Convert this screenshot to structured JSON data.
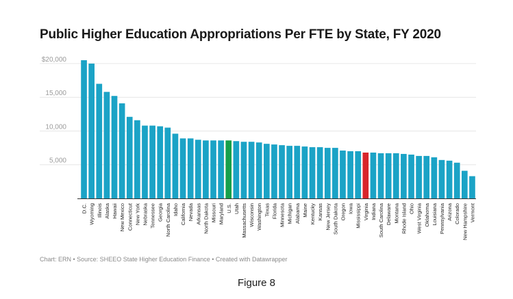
{
  "title": "Public Higher Education Appropriations Per FTE by State, FY 2020",
  "footer": "Chart: ERN • Source: SHEEO State Higher Education Finance • Created with Datawrapper",
  "caption": "Figure 8",
  "colors": {
    "default": "#1ba3c6",
    "us": "#16a04a",
    "highlight": "#d8262b",
    "grid": "#e6e6e6",
    "axis": "#333333",
    "tick_text": "#9a9a9a"
  },
  "chart_data": {
    "type": "bar",
    "title": "Public Higher Education Appropriations Per FTE by State, FY 2020",
    "xlabel": "",
    "ylabel": "",
    "ylim": [
      0,
      20500
    ],
    "y_ticks": [
      5000,
      10000,
      15000,
      20000
    ],
    "y_tick_labels": [
      "5,000",
      "10,000",
      "15,000",
      "$20,000"
    ],
    "grid": true,
    "categories": [
      "D.C.",
      "Wyoming",
      "Illinois",
      "Alaska",
      "Hawaii",
      "New Mexico",
      "Connecticut",
      "New York",
      "Nebraska",
      "Tennessee",
      "Georgia",
      "North Carolina",
      "Idaho",
      "California",
      "Nevada",
      "Arkansas",
      "North Dakota",
      "Missouri",
      "Maryland",
      "U.S.",
      "Utah",
      "Massachusetts",
      "Wisconsin",
      "Washington",
      "Texas",
      "Florida",
      "Minnesota",
      "Michigan",
      "Alabama",
      "Maine",
      "Kentucky",
      "Kansas",
      "New Jersey",
      "South Dakota",
      "Oregon",
      "Iowa",
      "Mississippi",
      "Virginia",
      "Indiana",
      "South Carolina",
      "Delaware",
      "Montana",
      "Rhode Island",
      "Ohio",
      "West Virginia",
      "Oklahoma",
      "Louisiana",
      "Pennsylvania",
      "Arizona",
      "Colorado",
      "New Hampshire",
      "Vermont"
    ],
    "values": [
      20500,
      20000,
      17000,
      15800,
      15200,
      14100,
      12100,
      11600,
      10800,
      10800,
      10700,
      10500,
      9600,
      8900,
      8900,
      8700,
      8600,
      8600,
      8600,
      8600,
      8500,
      8400,
      8400,
      8300,
      8100,
      8000,
      7900,
      7800,
      7800,
      7700,
      7600,
      7600,
      7500,
      7500,
      7100,
      7000,
      7000,
      6800,
      6800,
      6700,
      6700,
      6700,
      6600,
      6500,
      6300,
      6300,
      6100,
      5700,
      5600,
      5300,
      4100,
      3300
    ],
    "highlight": {
      "U.S.": "us",
      "Virginia": "highlight"
    }
  }
}
